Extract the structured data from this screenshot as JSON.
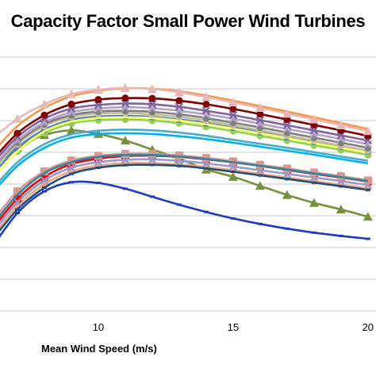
{
  "chart_data": {
    "type": "line",
    "title": "Capacity Factor Small Power Wind Turbines",
    "xlabel": "Mean Wind Speed (m/s)",
    "ylabel": "",
    "xlim": [
      6,
      20.3
    ],
    "x_ticks": [
      "10",
      "15",
      "20"
    ],
    "grid": "horizontal",
    "legend": "none",
    "x": [
      6,
      7,
      8,
      9,
      10,
      11,
      12,
      13,
      14,
      15,
      16,
      17,
      18,
      19,
      20
    ],
    "series": [
      {
        "color": "#1f3cbf",
        "marker": "dash",
        "values": [
          0.17,
          0.27,
          0.33,
          0.355,
          0.353,
          0.337,
          0.315,
          0.293,
          0.273,
          0.255,
          0.24,
          0.227,
          0.216,
          0.207,
          0.199
        ]
      },
      {
        "color": "#76923c",
        "marker": "triangle",
        "values": [
          0.39,
          0.45,
          0.485,
          0.498,
          0.488,
          0.47,
          0.445,
          0.42,
          0.39,
          0.37,
          0.345,
          0.32,
          0.298,
          0.28,
          0.26
        ]
      },
      {
        "color": "#f4a582",
        "marker": "circle",
        "values": [
          0.2,
          0.29,
          0.35,
          0.385,
          0.401,
          0.408,
          0.408,
          0.404,
          0.397,
          0.388,
          0.378,
          0.368,
          0.358,
          0.348,
          0.338
        ]
      },
      {
        "color": "#ff0000",
        "marker": "square",
        "values": [
          0.22,
          0.31,
          0.37,
          0.405,
          0.42,
          0.427,
          0.428,
          0.425,
          0.418,
          0.41,
          0.4,
          0.389,
          0.378,
          0.368,
          0.357
        ]
      },
      {
        "color": "#1f4e79",
        "marker": "dash",
        "values": [
          0.19,
          0.28,
          0.34,
          0.378,
          0.395,
          0.402,
          0.403,
          0.4,
          0.393,
          0.384,
          0.374,
          0.364,
          0.354,
          0.344,
          0.334
        ]
      },
      {
        "color": "#9999cc",
        "marker": "x",
        "values": [
          0.21,
          0.3,
          0.36,
          0.395,
          0.41,
          0.417,
          0.418,
          0.414,
          0.407,
          0.398,
          0.388,
          0.378,
          0.368,
          0.358,
          0.347
        ]
      },
      {
        "color": "#d99694",
        "marker": "square",
        "values": [
          0.24,
          0.33,
          0.385,
          0.415,
          0.428,
          0.433,
          0.433,
          0.429,
          0.422,
          0.413,
          0.403,
          0.393,
          0.382,
          0.372,
          0.36
        ]
      },
      {
        "color": "#31859c",
        "marker": "none",
        "values": [
          0.23,
          0.32,
          0.38,
          0.41,
          0.425,
          0.43,
          0.43,
          0.426,
          0.419,
          0.41,
          0.4,
          0.39,
          0.379,
          0.369,
          0.358
        ]
      },
      {
        "color": "#4bacc6",
        "marker": "none",
        "values": [
          0.33,
          0.41,
          0.46,
          0.487,
          0.497,
          0.5,
          0.498,
          0.492,
          0.483,
          0.472,
          0.461,
          0.45,
          0.438,
          0.426,
          0.414
        ]
      },
      {
        "color": "#00b0f0",
        "marker": "none",
        "values": [
          0.32,
          0.4,
          0.45,
          0.478,
          0.488,
          0.49,
          0.488,
          0.482,
          0.474,
          0.464,
          0.453,
          0.442,
          0.431,
          0.419,
          0.407
        ]
      },
      {
        "color": "#92d050",
        "marker": "circle",
        "values": [
          0.36,
          0.44,
          0.49,
          0.517,
          0.526,
          0.528,
          0.525,
          0.518,
          0.508,
          0.496,
          0.483,
          0.47,
          0.457,
          0.444,
          0.43
        ]
      },
      {
        "color": "#4f81bd",
        "marker": "circle",
        "values": [
          0.37,
          0.45,
          0.5,
          0.527,
          0.536,
          0.538,
          0.535,
          0.528,
          0.518,
          0.506,
          0.493,
          0.48,
          0.467,
          0.454,
          0.44
        ]
      },
      {
        "color": "#ffff66",
        "marker": "none",
        "values": [
          0.36,
          0.44,
          0.495,
          0.522,
          0.532,
          0.534,
          0.532,
          0.525,
          0.515,
          0.503,
          0.49,
          0.477,
          0.463,
          0.45,
          0.437
        ]
      },
      {
        "color": "#c4bd97",
        "marker": "circle",
        "values": [
          0.38,
          0.46,
          0.51,
          0.535,
          0.544,
          0.546,
          0.542,
          0.535,
          0.525,
          0.512,
          0.498,
          0.484,
          0.47,
          0.456,
          0.442
        ]
      },
      {
        "color": "#7f7f7f",
        "marker": "circle",
        "values": [
          0.39,
          0.465,
          0.515,
          0.54,
          0.55,
          0.552,
          0.549,
          0.542,
          0.532,
          0.519,
          0.506,
          0.492,
          0.478,
          0.464,
          0.45
        ]
      },
      {
        "color": "#b3a2c7",
        "marker": "x",
        "values": [
          0.39,
          0.47,
          0.52,
          0.548,
          0.558,
          0.562,
          0.559,
          0.552,
          0.542,
          0.53,
          0.516,
          0.502,
          0.488,
          0.474,
          0.46
        ]
      },
      {
        "color": "#8064a2",
        "marker": "x",
        "values": [
          0.4,
          0.48,
          0.53,
          0.558,
          0.568,
          0.572,
          0.57,
          0.563,
          0.552,
          0.54,
          0.526,
          0.512,
          0.498,
          0.484,
          0.47
        ]
      },
      {
        "color": "#800000",
        "marker": "circle",
        "values": [
          0.41,
          0.49,
          0.54,
          0.57,
          0.583,
          0.587,
          0.586,
          0.58,
          0.57,
          0.557,
          0.543,
          0.528,
          0.513,
          0.498,
          0.483
        ]
      },
      {
        "color": "#f79646",
        "marker": "none",
        "values": [
          0.43,
          0.51,
          0.56,
          0.592,
          0.607,
          0.614,
          0.613,
          0.606,
          0.594,
          0.58,
          0.565,
          0.55,
          0.534,
          0.518,
          0.502
        ]
      },
      {
        "color": "#e6b9b8",
        "marker": "triangle",
        "values": [
          0.47,
          0.53,
          0.57,
          0.598,
          0.61,
          0.615,
          0.612,
          0.603,
          0.59,
          0.575,
          0.56,
          0.544,
          0.528,
          0.512,
          0.496
        ]
      }
    ]
  }
}
